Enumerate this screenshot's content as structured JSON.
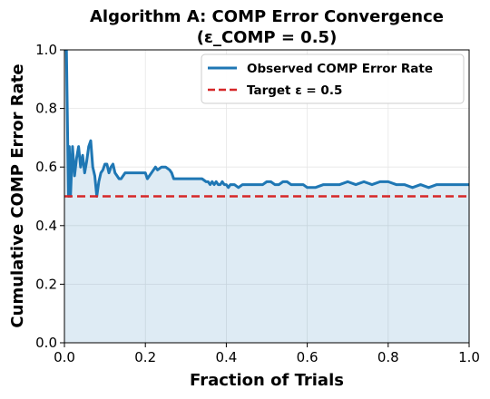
{
  "chart_data": {
    "type": "line",
    "title_line1": "Algorithm A: COMP Error Convergence",
    "title_line2": "(ε_COMP = 0.5)",
    "xlabel": "Fraction of Trials",
    "ylabel": "Cumulative COMP Error Rate",
    "xlim": [
      0,
      1
    ],
    "ylim": [
      0,
      1
    ],
    "xticks": [
      0,
      0.2,
      0.4,
      0.6,
      0.8,
      1.0
    ],
    "xtick_labels": [
      "0.0",
      "0.2",
      "0.4",
      "0.6",
      "0.8",
      "1.0"
    ],
    "yticks": [
      0,
      0.2,
      0.4,
      0.6,
      0.8,
      1.0
    ],
    "ytick_labels": [
      "0.0",
      "0.2",
      "0.4",
      "0.6",
      "0.8",
      "1.0"
    ],
    "grid": true,
    "legend_position": "top-right",
    "series": [
      {
        "name": "Observed COMP Error Rate",
        "color": "#1f77b4",
        "fill": true,
        "x": [
          0,
          0.005,
          0.01,
          0.012,
          0.015,
          0.02,
          0.025,
          0.03,
          0.035,
          0.04,
          0.045,
          0.05,
          0.055,
          0.06,
          0.065,
          0.07,
          0.075,
          0.08,
          0.085,
          0.09,
          0.095,
          0.1,
          0.105,
          0.11,
          0.115,
          0.12,
          0.125,
          0.13,
          0.135,
          0.14,
          0.145,
          0.15,
          0.155,
          0.16,
          0.17,
          0.18,
          0.19,
          0.2,
          0.205,
          0.21,
          0.22,
          0.225,
          0.23,
          0.24,
          0.25,
          0.26,
          0.265,
          0.27,
          0.28,
          0.29,
          0.3,
          0.31,
          0.32,
          0.33,
          0.34,
          0.35,
          0.355,
          0.36,
          0.365,
          0.37,
          0.375,
          0.38,
          0.385,
          0.39,
          0.395,
          0.4,
          0.405,
          0.41,
          0.42,
          0.43,
          0.44,
          0.45,
          0.46,
          0.47,
          0.48,
          0.49,
          0.5,
          0.51,
          0.52,
          0.53,
          0.54,
          0.55,
          0.56,
          0.57,
          0.58,
          0.59,
          0.6,
          0.62,
          0.64,
          0.66,
          0.68,
          0.7,
          0.72,
          0.74,
          0.76,
          0.78,
          0.8,
          0.82,
          0.84,
          0.86,
          0.88,
          0.9,
          0.92,
          0.94,
          0.96,
          0.98,
          1.0
        ],
        "y": [
          1.0,
          1.0,
          0.5,
          0.67,
          0.5,
          0.67,
          0.57,
          0.63,
          0.67,
          0.6,
          0.64,
          0.58,
          0.62,
          0.67,
          0.69,
          0.6,
          0.57,
          0.5,
          0.55,
          0.58,
          0.59,
          0.61,
          0.61,
          0.58,
          0.6,
          0.61,
          0.58,
          0.57,
          0.56,
          0.56,
          0.57,
          0.58,
          0.58,
          0.58,
          0.58,
          0.58,
          0.58,
          0.58,
          0.56,
          0.57,
          0.59,
          0.6,
          0.59,
          0.6,
          0.6,
          0.59,
          0.58,
          0.56,
          0.56,
          0.56,
          0.56,
          0.56,
          0.56,
          0.56,
          0.56,
          0.55,
          0.55,
          0.54,
          0.55,
          0.54,
          0.55,
          0.54,
          0.54,
          0.55,
          0.54,
          0.54,
          0.53,
          0.54,
          0.54,
          0.53,
          0.54,
          0.54,
          0.54,
          0.54,
          0.54,
          0.54,
          0.55,
          0.55,
          0.54,
          0.54,
          0.55,
          0.55,
          0.54,
          0.54,
          0.54,
          0.54,
          0.53,
          0.53,
          0.54,
          0.54,
          0.54,
          0.55,
          0.54,
          0.55,
          0.54,
          0.55,
          0.55,
          0.54,
          0.54,
          0.53,
          0.54,
          0.53,
          0.54,
          0.54,
          0.54,
          0.54,
          0.54
        ]
      },
      {
        "name": "Target ε = 0.5",
        "color": "#d62728",
        "style": "dashed",
        "x": [
          0,
          1
        ],
        "y": [
          0.5,
          0.5
        ]
      }
    ]
  }
}
